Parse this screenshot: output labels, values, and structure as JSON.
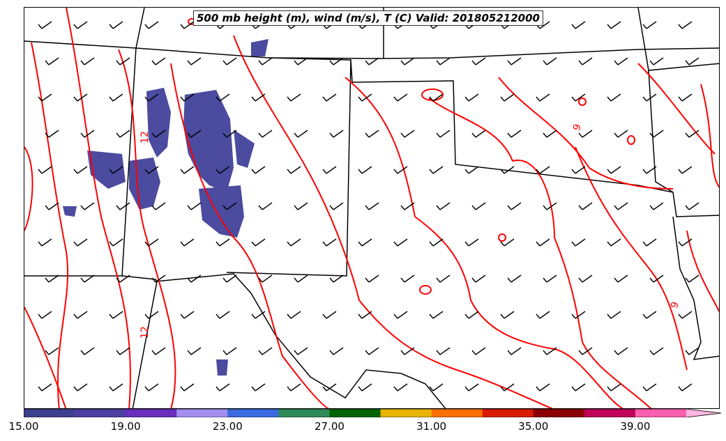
{
  "title": "500 mb height (m), wind (m/s), T (C) Valid: 201805212000",
  "contour_labels": [
    "12",
    "12",
    "9",
    "9"
  ],
  "colorbar": {
    "colors": [
      "#3d3f8f",
      "#4b3fa0",
      "#6a2dbd",
      "#a48ef0",
      "#3b6be0",
      "#2e8b57",
      "#006400",
      "#e8b400",
      "#ff7000",
      "#d81b00",
      "#8b0000",
      "#c0005a",
      "#ff5fb0",
      "#ffb6e0"
    ],
    "tick_labels": [
      "15.00",
      "19.00",
      "23.00",
      "27.00",
      "31.00",
      "35.00",
      "39.00"
    ]
  },
  "colors": {
    "temperature_contour": "#ff0000",
    "precip_fill": "#4b4ba0",
    "boundaries": "#000000"
  }
}
